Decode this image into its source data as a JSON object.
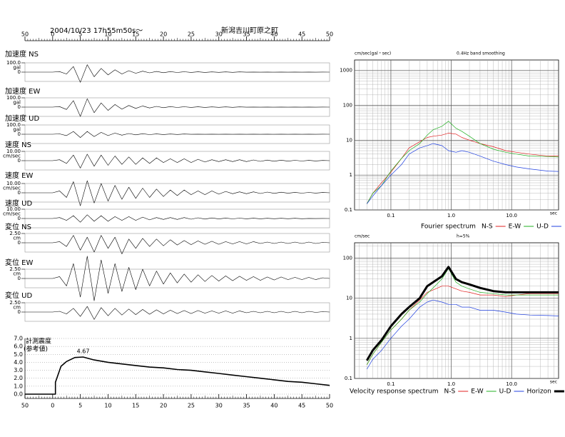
{
  "header": {
    "datetime": "2004/10/23  17h55m50s～",
    "location": "新潟吉川町原之町"
  },
  "chart_data": [
    {
      "type": "line",
      "xlim": [
        0,
        11
      ],
      "xticks": [
        {
          "value": 0,
          "label": "50"
        },
        {
          "value": 1,
          "label": "0"
        },
        {
          "value": 2,
          "label": "5"
        },
        {
          "value": 3,
          "label": "10"
        },
        {
          "value": 4,
          "label": "15"
        },
        {
          "value": 5,
          "label": "20"
        },
        {
          "value": 6,
          "label": "25"
        },
        {
          "value": 7,
          "label": "30"
        },
        {
          "value": 8,
          "label": "35"
        },
        {
          "value": 9,
          "label": "40"
        },
        {
          "value": 10,
          "label": "45"
        },
        {
          "value": 11,
          "label": "50"
        }
      ],
      "x": [
        0,
        1,
        1.25,
        1.5,
        1.75,
        2,
        2.25,
        2.5,
        2.75,
        3,
        3.25,
        3.5,
        3.75,
        4,
        4.25,
        4.5,
        4.75,
        5,
        5.25,
        5.5,
        5.75,
        6,
        6.25,
        6.5,
        6.75,
        7,
        7.25,
        7.5,
        7.75,
        8,
        8.25,
        8.5,
        8.75,
        9,
        9.25,
        9.5,
        9.75,
        10,
        10.25,
        10.5,
        10.75,
        11
      ],
      "series": [
        {
          "name": "加速度 NS",
          "color": "#000000",
          "unit": "gal",
          "ylim": [
            -100,
            100
          ],
          "yticks": [
            {
              "value": 100,
              "label": "100.0"
            },
            0
          ],
          "values": [
            0,
            0,
            5,
            -20,
            60,
            -110,
            80,
            -50,
            40,
            -30,
            25,
            -20,
            15,
            -12,
            10,
            -8,
            7,
            -6,
            5,
            -4,
            4,
            -3,
            3,
            -3,
            2,
            -2,
            2,
            -2,
            2,
            -1,
            1,
            -1,
            1,
            -1,
            1,
            -1,
            1,
            -1,
            1,
            -1,
            1,
            0
          ]
        },
        {
          "name": "加速度 EW",
          "color": "#000000",
          "unit": "gal",
          "ylim": [
            -100,
            100
          ],
          "yticks": [
            {
              "value": 100,
              "label": "100.0"
            },
            0
          ],
          "values": [
            0,
            0,
            5,
            -25,
            70,
            -100,
            90,
            -60,
            45,
            -35,
            28,
            -22,
            18,
            -14,
            12,
            -9,
            8,
            -6,
            5,
            -4,
            4,
            -3,
            3,
            -3,
            2,
            -2,
            2,
            -2,
            2,
            -1,
            1,
            -1,
            1,
            -1,
            1,
            -1,
            1,
            -1,
            1,
            -1,
            1,
            0
          ]
        },
        {
          "name": "加速度 UD",
          "color": "#000000",
          "unit": "gal",
          "ylim": [
            -100,
            100
          ],
          "yticks": [
            {
              "value": 100,
              "label": "100.0"
            },
            0
          ],
          "values": [
            0,
            0,
            4,
            -15,
            30,
            -35,
            30,
            -25,
            20,
            -15,
            12,
            -10,
            8,
            -6,
            5,
            -4,
            3,
            -3,
            2,
            -2,
            2,
            -1,
            1,
            -1,
            1,
            -1,
            1,
            -1,
            1,
            -1,
            1,
            -1,
            1,
            -1,
            1,
            -1,
            1,
            -1,
            1,
            -1,
            1,
            0
          ]
        },
        {
          "name": "速度 NS",
          "color": "#000000",
          "unit": "cm/sec",
          "ylim": [
            -10,
            10
          ],
          "yticks": [
            {
              "value": 10,
              "label": "10.00"
            },
            0
          ],
          "values": [
            0,
            0,
            1,
            -3,
            6,
            -8,
            7,
            -6,
            6,
            -5,
            5,
            -4,
            4,
            -4,
            3,
            -3,
            3,
            -2,
            2,
            -2,
            2,
            -2,
            1.5,
            -1.5,
            1,
            -1,
            1,
            -1,
            1,
            -1,
            0.8,
            -0.8,
            0.6,
            -0.6,
            0.5,
            -0.5,
            0.4,
            -0.4,
            0.3,
            -0.3,
            0.2,
            0
          ]
        },
        {
          "name": "速度 EW",
          "color": "#000000",
          "unit": "cm/sec",
          "ylim": [
            -10,
            10
          ],
          "yticks": [
            {
              "value": 10,
              "label": "10.00"
            },
            0
          ],
          "values": [
            0,
            0,
            2,
            -5,
            12,
            -14,
            13,
            -11,
            10,
            -9,
            8,
            -7,
            6,
            -6,
            5,
            -5,
            4,
            -4,
            3,
            -3,
            3,
            -2,
            2,
            -2,
            2,
            -1.5,
            1.5,
            -1,
            1,
            -1,
            1,
            -0.8,
            0.8,
            -0.6,
            0.6,
            -0.5,
            0.5,
            -0.4,
            0.4,
            -0.3,
            0.3,
            0
          ]
        },
        {
          "name": "速度 UD",
          "color": "#000000",
          "unit": "cm/sec",
          "ylim": [
            -10,
            10
          ],
          "yticks": [
            {
              "value": 10,
              "label": "10.00"
            },
            0
          ],
          "values": [
            0,
            0,
            1,
            -2,
            3,
            -4,
            4,
            -3,
            3,
            -3,
            2,
            -2,
            2,
            -2,
            1.5,
            -1.5,
            1,
            -1,
            1,
            -1,
            1,
            -0.8,
            0.8,
            -0.6,
            0.6,
            -0.5,
            0.5,
            -0.4,
            0.4,
            -0.3,
            0.3,
            -0.3,
            0.2,
            -0.2,
            0.2,
            -0.2,
            0.2,
            -0.2,
            0.1,
            -0.1,
            0.1,
            0
          ]
        },
        {
          "name": "変位 NS",
          "color": "#000000",
          "unit": "cm",
          "ylim": [
            -2.5,
            2.5
          ],
          "yticks": [
            {
              "value": 2.5,
              "label": "2.50"
            },
            0
          ],
          "values": [
            0,
            0,
            0.3,
            -1,
            2,
            -2,
            1.5,
            -2.5,
            2,
            -1.5,
            1.5,
            -3,
            1,
            -1.5,
            1.2,
            -1,
            1,
            -0.8,
            0.8,
            -0.6,
            0.6,
            -0.5,
            0.5,
            -0.4,
            0.4,
            -0.4,
            0.3,
            -0.3,
            0.3,
            -0.3,
            0.3,
            -0.2,
            0.2,
            -0.2,
            0.2,
            -0.2,
            0.2,
            -0.2,
            0.2,
            -0.2,
            0.1,
            0
          ]
        },
        {
          "name": "変位 EW",
          "color": "#000000",
          "unit": "cm",
          "ylim": [
            -2.5,
            2.5
          ],
          "yticks": [
            {
              "value": 2.5,
              "label": "2.50"
            },
            0
          ],
          "values": [
            0,
            0,
            0.5,
            -2,
            4,
            -5,
            6,
            -6,
            5,
            -4,
            4,
            -3.5,
            3,
            -3,
            2.5,
            -2,
            2,
            -1.5,
            1.5,
            -1.2,
            1.2,
            -1,
            1,
            -0.8,
            0.8,
            -0.7,
            0.7,
            -0.6,
            0.6,
            -0.5,
            0.5,
            -0.5,
            0.4,
            -0.4,
            0.4,
            -0.3,
            0.3,
            -0.3,
            0.3,
            -0.3,
            0.2,
            0
          ]
        },
        {
          "name": "変位 UD",
          "color": "#000000",
          "unit": "cm",
          "ylim": [
            -2.5,
            2.5
          ],
          "yticks": [
            {
              "value": 2.5,
              "label": "2.50"
            },
            0
          ],
          "values": [
            0,
            0,
            0.2,
            -0.5,
            1,
            -1.2,
            1.5,
            -2,
            1.2,
            -1,
            1,
            -0.8,
            0.8,
            -0.7,
            0.7,
            -0.6,
            0.6,
            -0.5,
            0.5,
            -0.4,
            0.4,
            -0.4,
            0.4,
            -0.3,
            0.3,
            -0.3,
            0.3,
            -0.3,
            0.3,
            -0.2,
            0.2,
            -0.2,
            0.2,
            -0.2,
            0.2,
            -0.2,
            0.2,
            -0.2,
            0.2,
            -0.1,
            0.1,
            0
          ]
        }
      ]
    },
    {
      "type": "line",
      "title": "計測震度",
      "subtitle": "(参考値)",
      "color": "#000000",
      "grid": true,
      "xlim": [
        0,
        11
      ],
      "xticks": [
        {
          "value": 0,
          "label": "50"
        },
        {
          "value": 1,
          "label": "0"
        },
        {
          "value": 2,
          "label": "5"
        },
        {
          "value": 3,
          "label": "10"
        },
        {
          "value": 4,
          "label": "15"
        },
        {
          "value": 5,
          "label": "20"
        },
        {
          "value": 6,
          "label": "25"
        },
        {
          "value": 7,
          "label": "30"
        },
        {
          "value": 8,
          "label": "35"
        },
        {
          "value": 9,
          "label": "40"
        },
        {
          "value": 10,
          "label": "45"
        },
        {
          "value": 11,
          "label": "50"
        }
      ],
      "ylim": [
        0,
        7
      ],
      "yticks": [
        {
          "value": 0,
          "label": "0.0"
        },
        {
          "value": 1,
          "label": "1.0"
        },
        {
          "value": 2,
          "label": "2.0"
        },
        {
          "value": 3,
          "label": "3.0"
        },
        {
          "value": 4,
          "label": "4.0"
        },
        {
          "value": 5,
          "label": "5.0"
        },
        {
          "value": 6,
          "label": "6.0"
        },
        {
          "value": 7,
          "label": "7.0"
        }
      ],
      "x": [
        0,
        1.1,
        1.1,
        1.3,
        1.5,
        1.8,
        2.1,
        2.5,
        3,
        3.5,
        4,
        4.5,
        5,
        5.5,
        6,
        6.5,
        7,
        7.5,
        8,
        8.5,
        9,
        9.5,
        10,
        10.5,
        11
      ],
      "values": [
        0,
        0,
        1.5,
        3.5,
        4.1,
        4.6,
        4.67,
        4.3,
        4.0,
        3.8,
        3.6,
        3.4,
        3.3,
        3.1,
        3.0,
        2.8,
        2.6,
        2.4,
        2.2,
        2.0,
        1.8,
        1.6,
        1.5,
        1.3,
        1.1
      ],
      "annotations": [
        {
          "text": "4.67",
          "x": 2.1,
          "y": 4.67
        }
      ]
    },
    {
      "type": "line",
      "log_x": true,
      "log_y": true,
      "grid": true,
      "title": "Fourier spectrum",
      "y_unit": "cm/sec(gal・sec)",
      "note": "0.4Hz band smoothing",
      "xlabel": "sec",
      "xlim": [
        0.025,
        60
      ],
      "ylim": [
        0.1,
        2000
      ],
      "xticks": [
        0.1,
        {
          "value": 1,
          "label": "1.0"
        },
        {
          "value": 10,
          "label": "10.0"
        }
      ],
      "yticks": [
        0.1,
        1,
        10,
        100,
        1000
      ],
      "x": [
        0.04,
        0.05,
        0.07,
        0.1,
        0.15,
        0.2,
        0.3,
        0.4,
        0.5,
        0.7,
        0.9,
        1.2,
        1.5,
        2,
        3,
        5,
        8,
        12,
        20,
        40,
        60
      ],
      "series": [
        {
          "name": "N-S",
          "color": "#e02020",
          "values": [
            0.15,
            0.3,
            0.6,
            1.2,
            3,
            6,
            9,
            12,
            13,
            14,
            16,
            15,
            12,
            10,
            8,
            6.5,
            5,
            4.5,
            4,
            3.5,
            3.5
          ]
        },
        {
          "name": "E-W",
          "color": "#20b020",
          "values": [
            0.15,
            0.3,
            0.5,
            1.3,
            3,
            5,
            8,
            14,
            20,
            25,
            35,
            22,
            18,
            13,
            8,
            5.5,
            4.5,
            4,
            3.5,
            3.4,
            3.3
          ]
        },
        {
          "name": "U-D",
          "color": "#2040e0",
          "values": [
            0.15,
            0.25,
            0.5,
            1,
            2,
            4,
            6,
            7,
            8,
            7,
            5,
            4.5,
            5,
            4.5,
            3.5,
            2.5,
            2,
            1.7,
            1.5,
            1.3,
            1.27
          ]
        }
      ]
    },
    {
      "type": "line",
      "log_x": true,
      "log_y": true,
      "grid": true,
      "title": "Velocity response spectrum",
      "y_unit": "cm/sec",
      "note": "h=5%",
      "xlabel": "sec",
      "xlim": [
        0.025,
        60
      ],
      "ylim": [
        0.1,
        240
      ],
      "xticks": [
        0.1,
        {
          "value": 1,
          "label": "1.0"
        },
        {
          "value": 10,
          "label": "10.0"
        }
      ],
      "yticks": [
        0.1,
        1,
        10,
        100
      ],
      "x": [
        0.04,
        0.05,
        0.07,
        0.1,
        0.15,
        0.2,
        0.3,
        0.4,
        0.5,
        0.7,
        0.9,
        1.2,
        1.5,
        2,
        3,
        5,
        8,
        12,
        20,
        40,
        60
      ],
      "series": [
        {
          "name": "N-S",
          "color": "#e02020",
          "values": [
            0.22,
            0.4,
            0.8,
            1.6,
            3,
            5,
            9,
            14,
            16,
            20,
            20,
            17,
            15,
            14,
            12,
            12,
            11,
            12,
            13,
            13,
            13
          ]
        },
        {
          "name": "E-W",
          "color": "#20b020",
          "values": [
            0.22,
            0.4,
            0.8,
            1.6,
            3,
            5,
            8,
            13,
            18,
            30,
            55,
            25,
            20,
            17,
            14,
            13,
            12,
            12,
            12,
            12,
            12
          ]
        },
        {
          "name": "U-D",
          "color": "#2040e0",
          "values": [
            0.17,
            0.3,
            0.5,
            1,
            2,
            3,
            6,
            8,
            9,
            8,
            7,
            7,
            6,
            6,
            5,
            5,
            4.5,
            4,
            3.8,
            3.7,
            3.6
          ]
        },
        {
          "name": "Horizon",
          "color": "#000000",
          "width": 3,
          "values": [
            0.28,
            0.5,
            0.9,
            2,
            4,
            6,
            10,
            20,
            25,
            35,
            60,
            30,
            25,
            22,
            18,
            15,
            14,
            14,
            14,
            14,
            14
          ]
        }
      ]
    }
  ]
}
